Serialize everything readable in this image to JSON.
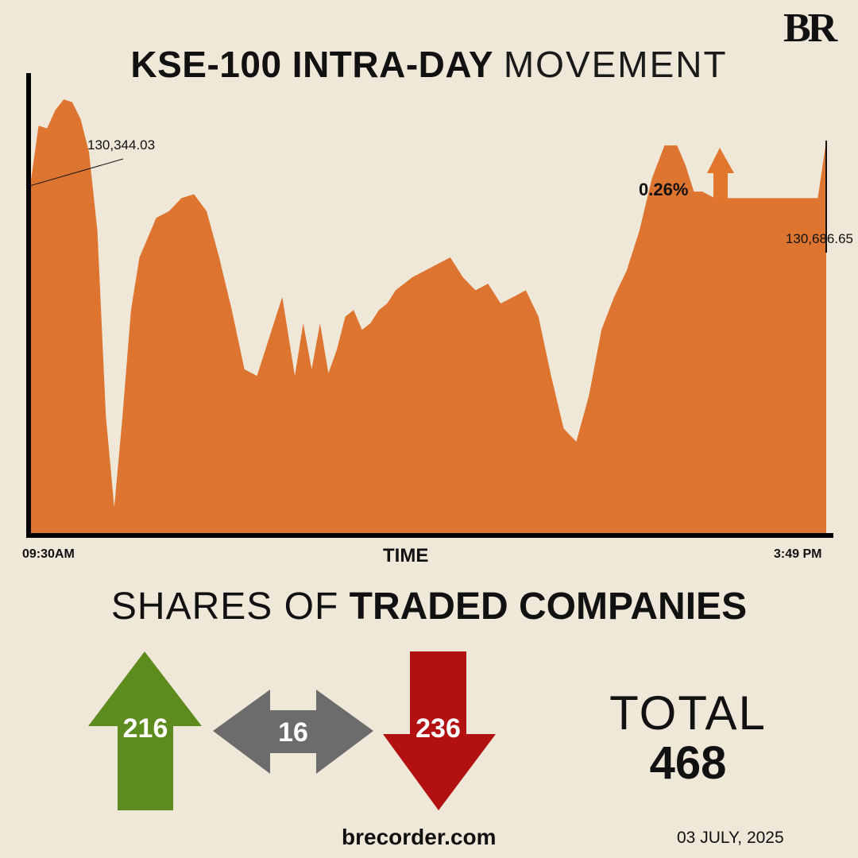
{
  "brand": {
    "logo_text": "BR",
    "website": "brecorder.com"
  },
  "header": {
    "title_bold": "KSE-100 INTRA-DAY",
    "title_light": "MOVEMENT"
  },
  "colors": {
    "background": "#efe7d8",
    "chart_fill": "#dd7530",
    "up": "#5e8b1d",
    "neutral": "#6c6c6c",
    "down": "#b31012",
    "change_arrow": "#e0772d"
  },
  "chart_data": {
    "type": "area",
    "title": "KSE-100 INTRA-DAY MOVEMENT",
    "xlabel": "TIME",
    "ylabel": "",
    "x_start_label": "09:30AM",
    "x_end_label": "3:49 PM",
    "xlim": [
      "09:30",
      "15:49"
    ],
    "ylim": [
      127700,
      131200
    ],
    "grid": false,
    "series": [
      {
        "x": [
          "09:30",
          "09:34",
          "09:38",
          "09:42",
          "09:46",
          "09:50",
          "09:54",
          "09:58",
          "10:02",
          "10:06",
          "10:10",
          "10:14",
          "10:18",
          "10:22",
          "10:26",
          "10:30",
          "10:36",
          "10:42",
          "10:48",
          "10:54",
          "11:00",
          "11:06",
          "11:12",
          "11:18",
          "11:24",
          "11:30",
          "11:36",
          "11:40",
          "11:44",
          "11:48",
          "11:52",
          "11:56",
          "12:00",
          "12:04",
          "12:08",
          "12:12",
          "12:16",
          "12:20",
          "12:24",
          "12:28",
          "12:32",
          "12:38",
          "12:44",
          "12:50",
          "12:56",
          "13:02",
          "13:08",
          "13:14",
          "13:20",
          "13:26",
          "13:32",
          "13:38",
          "13:44",
          "13:50",
          "13:56",
          "14:02",
          "14:08",
          "14:14",
          "14:20",
          "14:26",
          "14:32",
          "14:38",
          "14:42",
          "14:46",
          "14:50",
          "14:56",
          "15:02",
          "15:08",
          "15:14",
          "15:18",
          "15:22",
          "15:26",
          "15:30",
          "15:34",
          "15:38",
          "15:42",
          "15:45",
          "15:49"
        ],
        "y": [
          130344.03,
          130800,
          130780,
          130920,
          131000,
          130980,
          130850,
          130600,
          130000,
          128600,
          127900,
          128600,
          129400,
          129800,
          129950,
          130100,
          130150,
          130250,
          130280,
          130150,
          129800,
          129400,
          128950,
          128900,
          129200,
          129500,
          128900,
          129300,
          128950,
          129300,
          128920,
          129100,
          129350,
          129400,
          129250,
          129300,
          129400,
          129450,
          129550,
          129600,
          129650,
          129700,
          129750,
          129800,
          129650,
          129550,
          129600,
          129450,
          129500,
          129550,
          129350,
          128900,
          128500,
          128400,
          128750,
          129250,
          129500,
          129700,
          130000,
          130400,
          130650,
          130650,
          130500,
          130300,
          130300,
          130250,
          130250,
          130250,
          130250,
          130250,
          130250,
          130250,
          130250,
          130250,
          130250,
          130250,
          130250,
          130686.65
        ]
      }
    ],
    "annotations": [
      {
        "label": "130,344.03",
        "value": 130344.03,
        "at": "open"
      },
      {
        "label": "130,686.65",
        "value": 130686.65,
        "at": "close"
      }
    ],
    "change_label": "0.26%",
    "change_direction": "up"
  },
  "breadth": {
    "title_light": "SHARES OF",
    "title_bold": "TRADED COMPANIES",
    "advancers": "216",
    "unchanged": "16",
    "decliners": "236",
    "total_label": "TOTAL",
    "total_value": "468"
  },
  "footer": {
    "date": "03 JULY, 2025"
  }
}
